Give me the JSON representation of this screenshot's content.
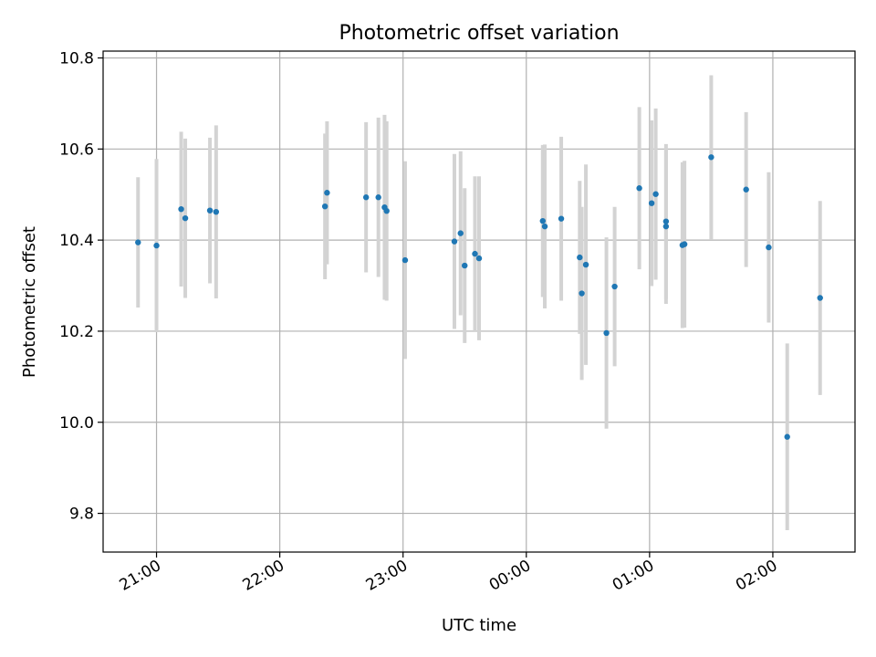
{
  "chart_data": {
    "type": "scatter",
    "title": "Photometric offset variation",
    "xlabel": "UTC time",
    "ylabel": "Photometric offset",
    "grid": true,
    "colors": {
      "points": "#1f77b4",
      "errorbars": "#d3d3d3",
      "grid": "#b0b0b0"
    },
    "x_ticks": [
      "21:00",
      "22:00",
      "23:00",
      "00:00",
      "01:00",
      "02:00"
    ],
    "y_ticks": [
      "9.8",
      "10.0",
      "10.2",
      "10.4",
      "10.6",
      "10.8"
    ],
    "xlim": [
      "20:34",
      "02:40"
    ],
    "ylim": [
      9.715,
      10.815
    ],
    "series": [
      {
        "points": [
          {
            "time": "20:51",
            "y": 10.395,
            "err": 0.143
          },
          {
            "time": "21:00",
            "y": 10.388,
            "err": 0.19
          },
          {
            "time": "21:12",
            "y": 10.468,
            "err": 0.17
          },
          {
            "time": "21:14",
            "y": 10.448,
            "err": 0.175
          },
          {
            "time": "21:26",
            "y": 10.465,
            "err": 0.16
          },
          {
            "time": "21:29",
            "y": 10.462,
            "err": 0.19
          },
          {
            "time": "22:22",
            "y": 10.474,
            "err": 0.16
          },
          {
            "time": "22:23",
            "y": 10.504,
            "err": 0.157
          },
          {
            "time": "22:42",
            "y": 10.494,
            "err": 0.165
          },
          {
            "time": "22:48",
            "y": 10.494,
            "err": 0.175
          },
          {
            "time": "22:51",
            "y": 10.472,
            "err": 0.203
          },
          {
            "time": "22:52",
            "y": 10.464,
            "err": 0.197
          },
          {
            "time": "23:01",
            "y": 10.356,
            "err": 0.217
          },
          {
            "time": "23:25",
            "y": 10.397,
            "err": 0.192
          },
          {
            "time": "23:28",
            "y": 10.415,
            "err": 0.18
          },
          {
            "time": "23:30",
            "y": 10.344,
            "err": 0.17
          },
          {
            "time": "23:35",
            "y": 10.37,
            "err": 0.17
          },
          {
            "time": "23:37",
            "y": 10.36,
            "err": 0.18
          },
          {
            "time": "00:08",
            "y": 10.442,
            "err": 0.167
          },
          {
            "time": "00:09",
            "y": 10.43,
            "err": 0.18
          },
          {
            "time": "00:17",
            "y": 10.447,
            "err": 0.18
          },
          {
            "time": "00:26",
            "y": 10.362,
            "err": 0.168
          },
          {
            "time": "00:27",
            "y": 10.283,
            "err": 0.19
          },
          {
            "time": "00:29",
            "y": 10.346,
            "err": 0.22
          },
          {
            "time": "00:39",
            "y": 10.196,
            "err": 0.21
          },
          {
            "time": "00:43",
            "y": 10.298,
            "err": 0.175
          },
          {
            "time": "00:55",
            "y": 10.514,
            "err": 0.178
          },
          {
            "time": "01:01",
            "y": 10.481,
            "err": 0.182
          },
          {
            "time": "01:03",
            "y": 10.501,
            "err": 0.188
          },
          {
            "time": "01:08",
            "y": 10.43,
            "err": 0.17
          },
          {
            "time": "01:08",
            "y": 10.441,
            "err": 0.17
          },
          {
            "time": "01:16",
            "y": 10.389,
            "err": 0.182
          },
          {
            "time": "01:17",
            "y": 10.391,
            "err": 0.183
          },
          {
            "time": "01:30",
            "y": 10.582,
            "err": 0.18
          },
          {
            "time": "01:47",
            "y": 10.511,
            "err": 0.17
          },
          {
            "time": "01:58",
            "y": 10.384,
            "err": 0.165
          },
          {
            "time": "02:07",
            "y": 9.968,
            "err": 0.205
          },
          {
            "time": "02:23",
            "y": 10.273,
            "err": 0.213
          }
        ]
      }
    ]
  }
}
